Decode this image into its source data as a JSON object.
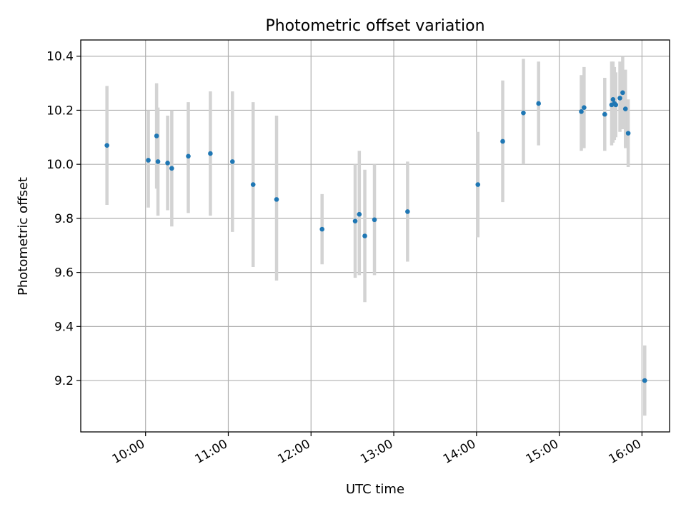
{
  "chart_data": {
    "type": "scatter",
    "title": "Photometric offset variation",
    "xlabel": "UTC time",
    "ylabel": "Photometric offset",
    "x_axis": "time (hours, UTC)",
    "xlim": [
      "09:13",
      "16:20"
    ],
    "ylim": [
      9.01,
      10.46
    ],
    "xticks": [
      "10:00",
      "11:00",
      "12:00",
      "13:00",
      "14:00",
      "15:00",
      "16:00"
    ],
    "yticks": [
      "9.2",
      "9.4",
      "9.6",
      "9.8",
      "10.0",
      "10.2",
      "10.4"
    ],
    "grid": true,
    "point_color": "#1f77b4",
    "errorbar_color": "#d3d3d3",
    "points": [
      {
        "x": "09:32",
        "y": 10.07,
        "ylo": 9.85,
        "yhi": 10.29
      },
      {
        "x": "10:02",
        "y": 10.015,
        "ylo": 9.84,
        "yhi": 10.2
      },
      {
        "x": "10:08",
        "y": 10.105,
        "ylo": 9.91,
        "yhi": 10.3
      },
      {
        "x": "10:09",
        "y": 10.01,
        "ylo": 9.81,
        "yhi": 10.21
      },
      {
        "x": "10:16",
        "y": 10.005,
        "ylo": 9.83,
        "yhi": 10.18
      },
      {
        "x": "10:19",
        "y": 9.985,
        "ylo": 9.77,
        "yhi": 10.2
      },
      {
        "x": "10:31",
        "y": 10.03,
        "ylo": 9.82,
        "yhi": 10.23
      },
      {
        "x": "10:47",
        "y": 10.04,
        "ylo": 9.81,
        "yhi": 10.27
      },
      {
        "x": "11:03",
        "y": 10.01,
        "ylo": 9.75,
        "yhi": 10.27
      },
      {
        "x": "11:18",
        "y": 9.925,
        "ylo": 9.62,
        "yhi": 10.23
      },
      {
        "x": "11:35",
        "y": 9.87,
        "ylo": 9.57,
        "yhi": 10.18
      },
      {
        "x": "12:08",
        "y": 9.76,
        "ylo": 9.63,
        "yhi": 9.89
      },
      {
        "x": "12:32",
        "y": 9.79,
        "ylo": 9.58,
        "yhi": 10.0
      },
      {
        "x": "12:35",
        "y": 9.815,
        "ylo": 9.59,
        "yhi": 10.05
      },
      {
        "x": "12:39",
        "y": 9.735,
        "ylo": 9.49,
        "yhi": 9.98
      },
      {
        "x": "12:46",
        "y": 9.795,
        "ylo": 9.59,
        "yhi": 10.0
      },
      {
        "x": "13:10",
        "y": 9.825,
        "ylo": 9.64,
        "yhi": 10.01
      },
      {
        "x": "14:01",
        "y": 9.925,
        "ylo": 9.73,
        "yhi": 10.12
      },
      {
        "x": "14:19",
        "y": 10.085,
        "ylo": 9.86,
        "yhi": 10.31
      },
      {
        "x": "14:34",
        "y": 10.19,
        "ylo": 10.0,
        "yhi": 10.39
      },
      {
        "x": "14:45",
        "y": 10.225,
        "ylo": 10.07,
        "yhi": 10.38
      },
      {
        "x": "15:16",
        "y": 10.195,
        "ylo": 10.05,
        "yhi": 10.33
      },
      {
        "x": "15:18",
        "y": 10.21,
        "ylo": 10.06,
        "yhi": 10.36
      },
      {
        "x": "15:33",
        "y": 10.185,
        "ylo": 10.05,
        "yhi": 10.32
      },
      {
        "x": "15:38",
        "y": 10.22,
        "ylo": 10.07,
        "yhi": 10.38
      },
      {
        "x": "15:39",
        "y": 10.24,
        "ylo": 10.08,
        "yhi": 10.38
      },
      {
        "x": "15:40",
        "y": 10.225,
        "ylo": 10.09,
        "yhi": 10.36
      },
      {
        "x": "15:41",
        "y": 10.22,
        "ylo": 10.1,
        "yhi": 10.34
      },
      {
        "x": "15:44",
        "y": 10.245,
        "ylo": 10.12,
        "yhi": 10.38
      },
      {
        "x": "15:46",
        "y": 10.265,
        "ylo": 10.13,
        "yhi": 10.4
      },
      {
        "x": "15:48",
        "y": 10.205,
        "ylo": 10.06,
        "yhi": 10.35
      },
      {
        "x": "15:50",
        "y": 10.115,
        "ylo": 9.99,
        "yhi": 10.24
      },
      {
        "x": "16:02",
        "y": 9.2,
        "ylo": 9.07,
        "yhi": 9.33
      }
    ]
  }
}
